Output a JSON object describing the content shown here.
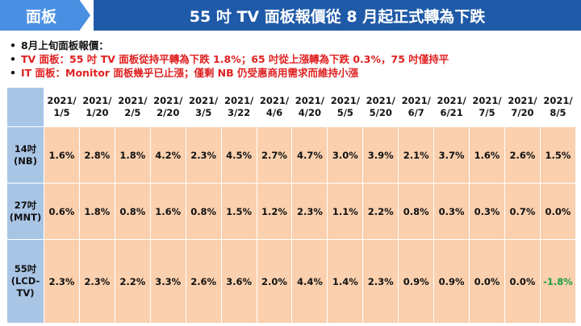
{
  "header": {
    "tag": "面板",
    "title": "55 吋 TV 面板報價從 8 月起正式轉為下跌",
    "colors": {
      "tag_bg": "#4a90e2",
      "title_bg": "#1f5aa8"
    }
  },
  "bullets": [
    {
      "text": "8月上旬面板報價：",
      "color": "#111111"
    },
    {
      "text": "TV 面板：55 吋 TV 面板從持平轉為下跌 1.8%；65 吋從上漲轉為下跌 0.3%，75 吋僅持平",
      "color": "#e02020"
    },
    {
      "text": "IT 面板：Monitor 面板幾乎已止漲；僅剩 NB 仍受惠商用需求而維持小漲",
      "color": "#e02020"
    }
  ],
  "table": {
    "columns": [
      [
        "2021/",
        "1/5"
      ],
      [
        "2021/",
        "1/20"
      ],
      [
        "2021/",
        "2/5"
      ],
      [
        "2021/",
        "2/20"
      ],
      [
        "2021/",
        "3/5"
      ],
      [
        "2021/",
        "3/22"
      ],
      [
        "2021/",
        "4/6"
      ],
      [
        "2021/",
        "4/20"
      ],
      [
        "2021/",
        "5/5"
      ],
      [
        "2021/",
        "5/20"
      ],
      [
        "2021/",
        "6/7"
      ],
      [
        "2021/",
        "6/21"
      ],
      [
        "2021/",
        "7/5"
      ],
      [
        "2021/",
        "7/20"
      ],
      [
        "2021/",
        "8/5"
      ]
    ],
    "rows": [
      {
        "label": [
          "14吋",
          "(NB)"
        ],
        "values": [
          "1.6%",
          "2.8%",
          "1.8%",
          "4.2%",
          "2.3%",
          "4.5%",
          "2.7%",
          "4.7%",
          "3.0%",
          "3.9%",
          "2.1%",
          "3.7%",
          "1.6%",
          "2.6%",
          "1.5%"
        ]
      },
      {
        "label": [
          "27吋",
          "(MNT)"
        ],
        "values": [
          "0.6%",
          "1.8%",
          "0.8%",
          "1.6%",
          "0.8%",
          "1.5%",
          "1.2%",
          "2.3%",
          "1.1%",
          "2.2%",
          "0.8%",
          "0.3%",
          "0.3%",
          "0.7%",
          "0.0%"
        ]
      },
      {
        "label": [
          "55吋",
          "(LCD-",
          "TV)"
        ],
        "values": [
          "2.3%",
          "2.3%",
          "2.2%",
          "3.3%",
          "2.6%",
          "3.6%",
          "2.0%",
          "4.4%",
          "1.4%",
          "2.3%",
          "0.9%",
          "0.9%",
          "0.0%",
          "0.0%",
          "-1.8%"
        ]
      }
    ],
    "colors": {
      "header_bg": "#a9c5e6",
      "cell_bg": "#fad0ae",
      "negative": "#1aa03c"
    }
  }
}
